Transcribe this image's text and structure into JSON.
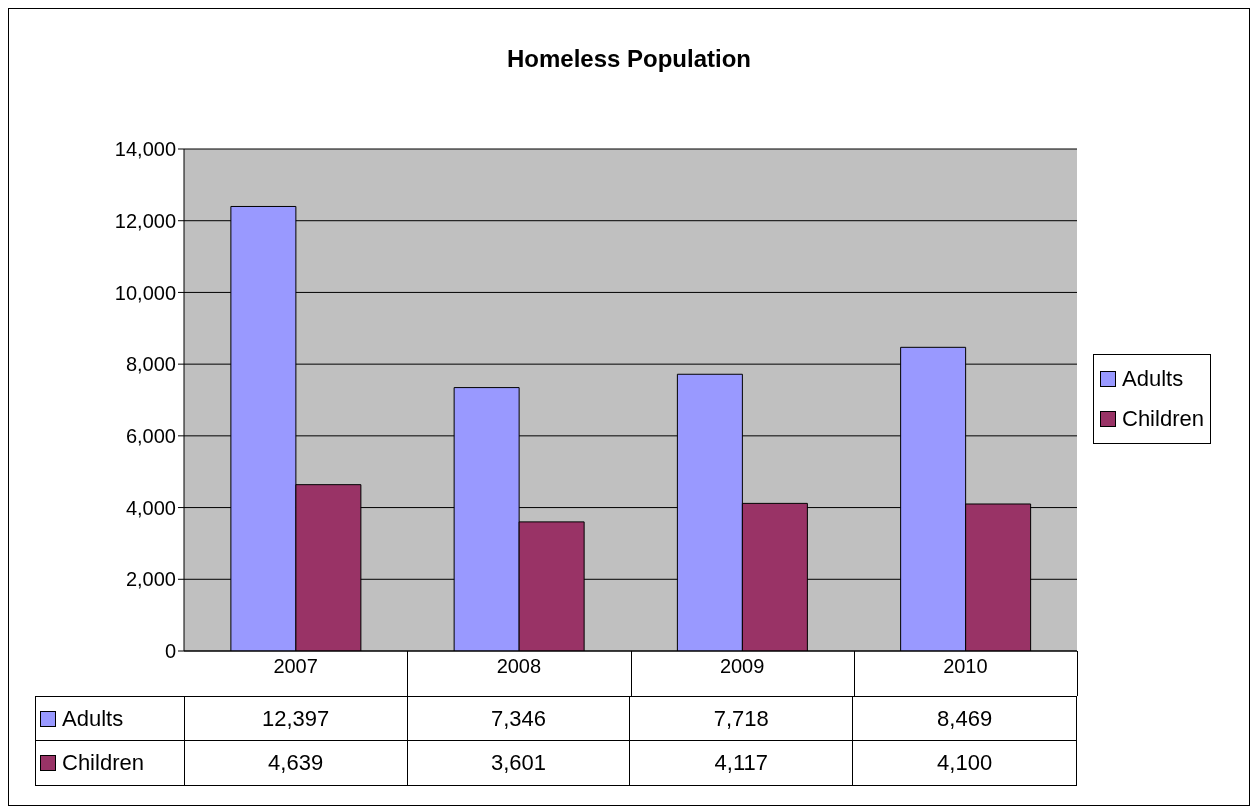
{
  "chart_data": {
    "type": "bar",
    "title": "Homeless Population",
    "categories": [
      "2007",
      "2008",
      "2009",
      "2010"
    ],
    "series": [
      {
        "name": "Adults",
        "color": "#9999ff",
        "values": [
          12397,
          7346,
          7718,
          8469
        ],
        "value_labels": [
          "12,397",
          "7,346",
          "7,718",
          "8,469"
        ]
      },
      {
        "name": "Children",
        "color": "#993366",
        "values": [
          4639,
          3601,
          4117,
          4100
        ],
        "value_labels": [
          "4,639",
          "3,601",
          "4,117",
          "4,100"
        ]
      }
    ],
    "ylim": [
      0,
      14000
    ],
    "yticks": [
      0,
      {
        "value": 2000,
        "label": "2,000"
      },
      {
        "value": 4000,
        "label": "4,000"
      },
      {
        "value": 6000,
        "label": "6,000"
      },
      {
        "value": 8000,
        "label": "8,000"
      },
      {
        "value": 10000,
        "label": "10,000"
      },
      {
        "value": 12000,
        "label": "12,000"
      },
      {
        "value": 14000,
        "label": "14,000"
      }
    ],
    "grid": "y",
    "legend": "right"
  }
}
